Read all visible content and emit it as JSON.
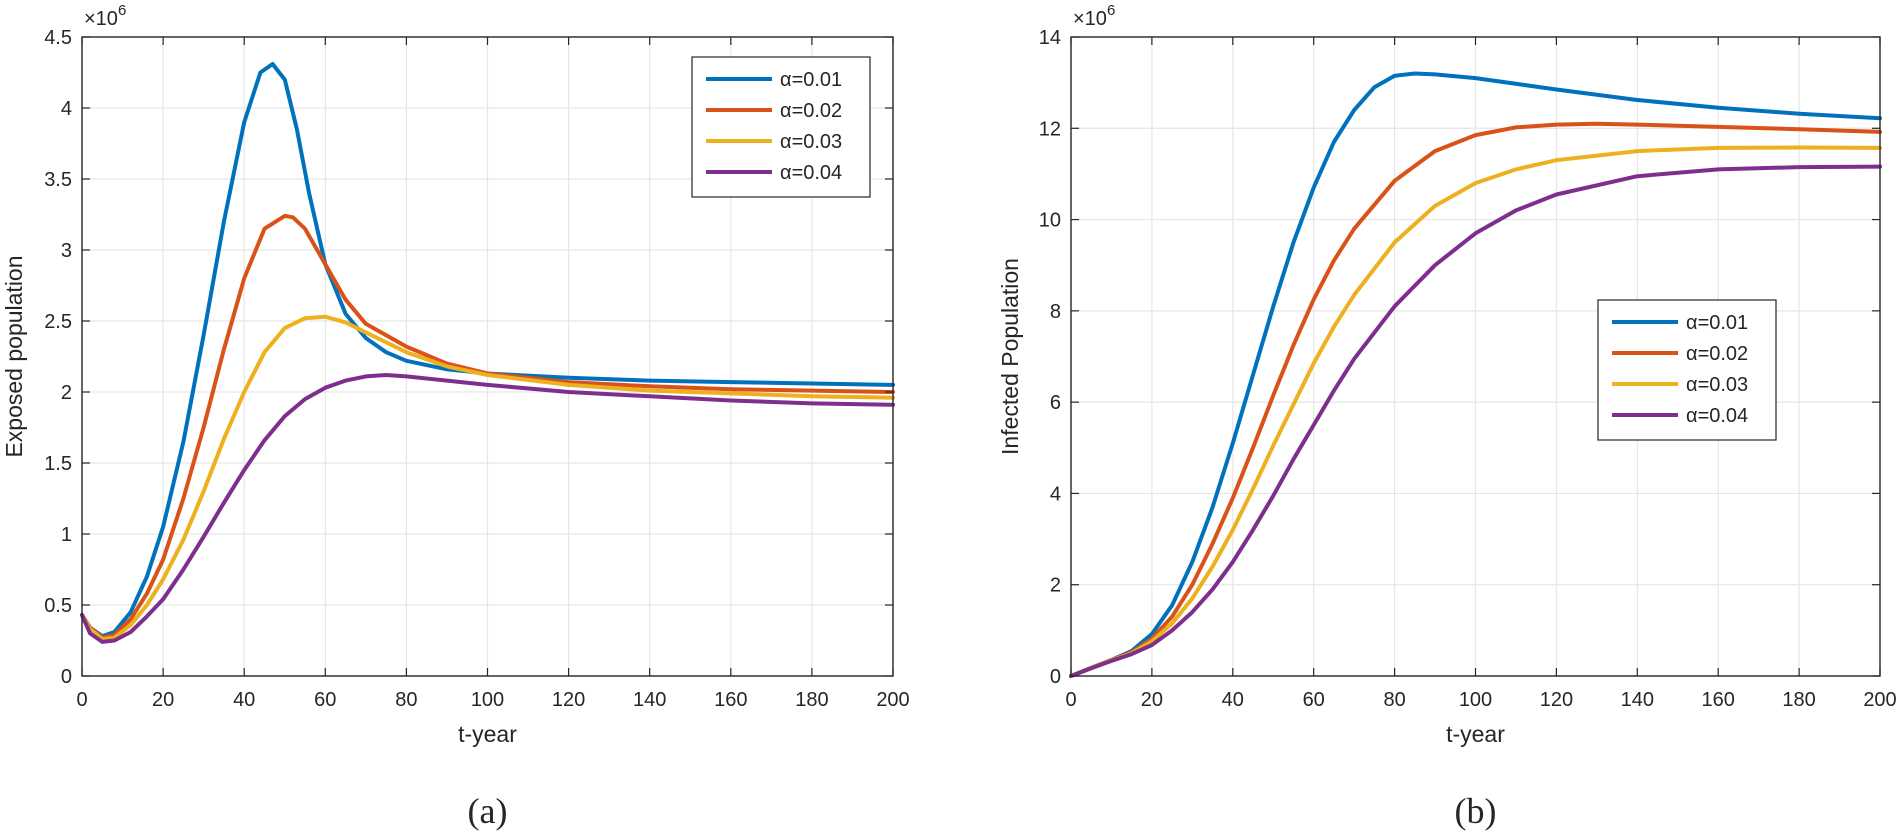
{
  "chart_data": [
    {
      "type": "line",
      "panel_label": "(a)",
      "title": "",
      "xlabel": "t-year",
      "ylabel": "Exposed population",
      "y_exponent": "×10",
      "y_exponent_power": "6",
      "xlim": [
        0,
        200
      ],
      "ylim": [
        0,
        4.5
      ],
      "xticks": [
        0,
        20,
        40,
        60,
        80,
        100,
        120,
        140,
        160,
        180,
        200
      ],
      "xtick_labels": [
        "0",
        "20",
        "40",
        "60",
        "80",
        "100",
        "120",
        "140",
        "160",
        "180",
        "200"
      ],
      "yticks": [
        0,
        0.5,
        1,
        1.5,
        2,
        2.5,
        3,
        3.5,
        4,
        4.5
      ],
      "ytick_labels": [
        "0",
        "0.5",
        "1",
        "1.5",
        "2",
        "2.5",
        "3",
        "3.5",
        "4",
        "4.5"
      ],
      "grid": true,
      "legend_position": "top-right",
      "series": [
        {
          "name": "α=0.01",
          "color": "#0072BD",
          "x": [
            0,
            2,
            5,
            8,
            12,
            16,
            20,
            25,
            30,
            35,
            40,
            44,
            47,
            50,
            53,
            56,
            60,
            65,
            70,
            75,
            80,
            90,
            100,
            120,
            140,
            160,
            180,
            200
          ],
          "y": [
            0.43,
            0.34,
            0.28,
            0.31,
            0.45,
            0.7,
            1.05,
            1.65,
            2.4,
            3.2,
            3.9,
            4.25,
            4.31,
            4.2,
            3.85,
            3.4,
            2.9,
            2.55,
            2.38,
            2.28,
            2.22,
            2.16,
            2.13,
            2.1,
            2.08,
            2.07,
            2.06,
            2.05
          ]
        },
        {
          "name": "α=0.02",
          "color": "#D95319",
          "x": [
            0,
            2,
            5,
            8,
            12,
            16,
            20,
            25,
            30,
            35,
            40,
            45,
            50,
            52,
            55,
            60,
            65,
            70,
            80,
            90,
            100,
            120,
            140,
            160,
            180,
            200
          ],
          "y": [
            0.43,
            0.34,
            0.27,
            0.29,
            0.4,
            0.58,
            0.82,
            1.25,
            1.75,
            2.3,
            2.8,
            3.15,
            3.24,
            3.23,
            3.15,
            2.9,
            2.65,
            2.48,
            2.32,
            2.2,
            2.13,
            2.07,
            2.04,
            2.02,
            2.01,
            2.0
          ]
        },
        {
          "name": "α=0.03",
          "color": "#EDB120",
          "x": [
            0,
            2,
            5,
            8,
            12,
            16,
            20,
            25,
            30,
            35,
            40,
            45,
            50,
            55,
            60,
            65,
            70,
            80,
            90,
            100,
            120,
            140,
            160,
            180,
            200
          ],
          "y": [
            0.43,
            0.33,
            0.26,
            0.27,
            0.36,
            0.5,
            0.68,
            0.96,
            1.3,
            1.67,
            2.0,
            2.28,
            2.45,
            2.52,
            2.53,
            2.49,
            2.42,
            2.28,
            2.18,
            2.12,
            2.05,
            2.01,
            1.99,
            1.97,
            1.96
          ]
        },
        {
          "name": "α=0.04",
          "color": "#7E2F8E",
          "x": [
            0,
            2,
            5,
            8,
            12,
            16,
            20,
            25,
            30,
            35,
            40,
            45,
            50,
            55,
            60,
            65,
            70,
            75,
            80,
            90,
            100,
            120,
            140,
            160,
            180,
            200
          ],
          "y": [
            0.43,
            0.3,
            0.24,
            0.25,
            0.31,
            0.42,
            0.54,
            0.75,
            0.98,
            1.22,
            1.45,
            1.66,
            1.83,
            1.95,
            2.03,
            2.08,
            2.11,
            2.12,
            2.11,
            2.08,
            2.05,
            2.0,
            1.97,
            1.94,
            1.92,
            1.91
          ]
        }
      ]
    },
    {
      "type": "line",
      "panel_label": "(b)",
      "title": "",
      "xlabel": "t-year",
      "ylabel": "Infected Population",
      "y_exponent": "×10",
      "y_exponent_power": "6",
      "xlim": [
        0,
        200
      ],
      "ylim": [
        0,
        14
      ],
      "xticks": [
        0,
        20,
        40,
        60,
        80,
        100,
        120,
        140,
        160,
        180,
        200
      ],
      "xtick_labels": [
        "0",
        "20",
        "40",
        "60",
        "80",
        "100",
        "120",
        "140",
        "160",
        "180",
        "200"
      ],
      "yticks": [
        0,
        2,
        4,
        6,
        8,
        10,
        12,
        14
      ],
      "ytick_labels": [
        "0",
        "2",
        "4",
        "6",
        "8",
        "10",
        "12",
        "14"
      ],
      "grid": true,
      "legend_position": "center-right",
      "series": [
        {
          "name": "α=0.01",
          "color": "#0072BD",
          "x": [
            0,
            5,
            10,
            15,
            20,
            25,
            30,
            35,
            40,
            45,
            50,
            55,
            60,
            65,
            70,
            75,
            80,
            85,
            90,
            100,
            120,
            140,
            160,
            180,
            200
          ],
          "y": [
            0,
            0.18,
            0.35,
            0.55,
            0.92,
            1.55,
            2.5,
            3.7,
            5.1,
            6.6,
            8.1,
            9.5,
            10.7,
            11.7,
            12.4,
            12.9,
            13.15,
            13.2,
            13.18,
            13.1,
            12.85,
            12.62,
            12.45,
            12.32,
            12.22
          ]
        },
        {
          "name": "α=0.02",
          "color": "#D95319",
          "x": [
            0,
            5,
            10,
            15,
            20,
            25,
            30,
            35,
            40,
            45,
            50,
            55,
            60,
            65,
            70,
            80,
            90,
            100,
            110,
            120,
            130,
            140,
            160,
            180,
            200
          ],
          "y": [
            0,
            0.18,
            0.35,
            0.52,
            0.82,
            1.3,
            2.0,
            2.9,
            3.9,
            5.0,
            6.15,
            7.25,
            8.25,
            9.1,
            9.8,
            10.85,
            11.5,
            11.85,
            12.02,
            12.08,
            12.1,
            12.08,
            12.03,
            11.98,
            11.92
          ]
        },
        {
          "name": "α=0.03",
          "color": "#EDB120",
          "x": [
            0,
            5,
            10,
            15,
            20,
            25,
            30,
            35,
            40,
            45,
            50,
            55,
            60,
            65,
            70,
            80,
            90,
            100,
            110,
            120,
            140,
            160,
            180,
            200
          ],
          "y": [
            0,
            0.17,
            0.34,
            0.5,
            0.76,
            1.15,
            1.7,
            2.4,
            3.2,
            4.1,
            5.05,
            5.95,
            6.85,
            7.65,
            8.35,
            9.5,
            10.3,
            10.8,
            11.1,
            11.3,
            11.5,
            11.57,
            11.58,
            11.57
          ]
        },
        {
          "name": "α=0.04",
          "color": "#7E2F8E",
          "x": [
            0,
            5,
            10,
            15,
            20,
            25,
            30,
            35,
            40,
            45,
            50,
            55,
            60,
            65,
            70,
            80,
            90,
            100,
            110,
            120,
            140,
            160,
            180,
            200
          ],
          "y": [
            0,
            0.17,
            0.33,
            0.48,
            0.68,
            1.0,
            1.4,
            1.9,
            2.5,
            3.2,
            3.95,
            4.75,
            5.5,
            6.25,
            6.95,
            8.1,
            9.0,
            9.7,
            10.2,
            10.55,
            10.95,
            11.1,
            11.15,
            11.16
          ]
        }
      ]
    }
  ]
}
